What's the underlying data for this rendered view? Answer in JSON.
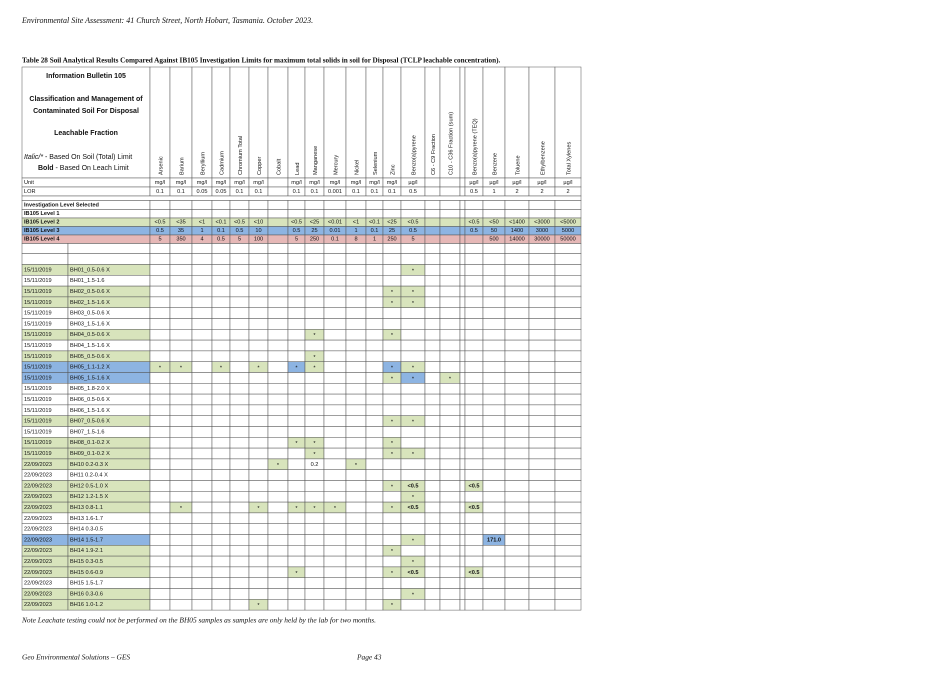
{
  "header": {
    "text": "Environmental Site Assessment: 41 Church Street, North Hobart, Tasmania. October 2023."
  },
  "caption": "Table 28  Soil Analytical Results Compared Against IB105 Investigation Limits for maximum total solids in soil for Disposal (TCLP leachable concentration).",
  "info": {
    "title": "Information Bulletin 105",
    "line1": "Classification and Management of",
    "line2": "Contaminated Soil For Disposal",
    "line3": "Leachable Fraction",
    "italic_label": "Italic/*",
    "italic_text": " - Based On Soil (Total) Limit",
    "bold_label": "Bold",
    "bold_text": " - Based On Leach Limit"
  },
  "palette": {
    "g": "#d8e4bc",
    "b": "#8db4e2",
    "p": "#e6b8b7"
  },
  "table": {
    "columns": [
      "Arsenic",
      "Barium",
      "Beryllium",
      "Cadmium",
      "Chromium Total",
      "Copper",
      "Cobalt",
      "Lead",
      "Manganese",
      "Mercury",
      "Nickel",
      "Selenium",
      "Zinc",
      "Benzo(a)pyrene",
      "C6 - C9 Fraction",
      "C10 - C36 Fraction (sum)",
      null,
      "Benzo(a)pyrene (TEQ)",
      "Benzene",
      "Toluene",
      "Ethylbenzene",
      "Total Xylenes"
    ],
    "unit": {
      "label": "Unit",
      "values": [
        "mg/l",
        "mg/l",
        "mg/l",
        "mg/l",
        "mg/l",
        "mg/l",
        null,
        "mg/l",
        "mg/l",
        "mg/l",
        "mg/l",
        "mg/l",
        "mg/l",
        "µg/l",
        null,
        null,
        null,
        "µg/l",
        "µg/l",
        "µg/l",
        "µg/l",
        "µg/l"
      ]
    },
    "lor": {
      "label": "LOR",
      "values": [
        "0.1",
        "0.1",
        "0.05",
        "0.05",
        "0.1",
        "0.1",
        null,
        "0.1",
        "0.1",
        "0.001",
        "0.1",
        "0.1",
        "0.1",
        "0.5",
        null,
        null,
        null,
        "0.5",
        "1",
        "2",
        "2",
        "2"
      ]
    },
    "levels": [
      {
        "label": "Investigation Level Selected"
      },
      {
        "label": "IB105 Level 1"
      },
      {
        "label": "IB105 Level 2",
        "fill": "g",
        "values": [
          "<0.5",
          "<35",
          "<1",
          "<0.1",
          "<0.5",
          "<10",
          null,
          "<0.5",
          "<25",
          "<0.01",
          "<1",
          "<0.1",
          "<25",
          "<0.5",
          null,
          null,
          null,
          "<0.5",
          "<50",
          "<1400",
          "<3000",
          "<5000"
        ]
      },
      {
        "label": "IB105 Level 3",
        "fill": "b",
        "values": [
          "0.5",
          "35",
          "1",
          "0.1",
          "0.5",
          "10",
          null,
          "0.5",
          "25",
          "0.01",
          "1",
          "0.1",
          "25",
          "0.5",
          null,
          null,
          null,
          "0.5",
          "50",
          "1400",
          "3000",
          "5000"
        ]
      },
      {
        "label": "IB105 Level 4",
        "fill": "p",
        "values": [
          "5",
          "350",
          "4",
          "0.5",
          "5",
          "100",
          null,
          "5",
          "250",
          "0.1",
          "8",
          "1",
          "250",
          "5",
          null,
          null,
          null,
          null,
          "500",
          "14000",
          "30000",
          "50000"
        ]
      }
    ],
    "samples": [
      {
        "date": "15/11/2019",
        "sample": "BH01_0.5-0.6 X",
        "fill": "g",
        "cells": {
          "13": [
            "*",
            "g"
          ]
        }
      },
      {
        "date": "15/11/2019",
        "sample": "BH01_1.5-1.6",
        "cells": {}
      },
      {
        "date": "15/11/2019",
        "sample": "BH02_0.5-0.6 X",
        "fill": "g",
        "cells": {
          "12": [
            "*",
            "g"
          ],
          "13": [
            "*",
            "g"
          ]
        }
      },
      {
        "date": "15/11/2019",
        "sample": "BH02_1.5-1.6 X",
        "fill": "g",
        "cells": {
          "12": [
            "*",
            "g"
          ],
          "13": [
            "*",
            "g"
          ]
        }
      },
      {
        "date": "15/11/2019",
        "sample": "BH03_0.5-0.6 X",
        "cells": {}
      },
      {
        "date": "15/11/2019",
        "sample": "BH03_1.5-1.6 X",
        "cells": {}
      },
      {
        "date": "15/11/2019",
        "sample": "BH04_0.5-0.6 X",
        "fill": "g",
        "cells": {
          "8": [
            "*",
            "g"
          ],
          "12": [
            "*",
            "g"
          ]
        }
      },
      {
        "date": "15/11/2019",
        "sample": "BH04_1.5-1.6 X",
        "cells": {}
      },
      {
        "date": "15/11/2019",
        "sample": "BH05_0.5-0.6 X",
        "fill": "g",
        "cells": {
          "8": [
            "*",
            "g"
          ]
        }
      },
      {
        "date": "15/11/2019",
        "sample": "BH05_1.1-1.2 X",
        "fill": "b",
        "cells": {
          "0": [
            "*",
            "g"
          ],
          "1": [
            "*",
            "g"
          ],
          "3": [
            "*",
            "g"
          ],
          "5": [
            "*",
            "g"
          ],
          "7": [
            "*",
            "b"
          ],
          "8": [
            "*",
            "g"
          ],
          "12": [
            "*",
            "b"
          ],
          "13": [
            "*",
            "g"
          ]
        }
      },
      {
        "date": "15/11/2019",
        "sample": "BH05_1.5-1.6 X",
        "fill": "b",
        "cells": {
          "12": [
            "*",
            "g"
          ],
          "13": [
            "*",
            "b"
          ],
          "15": [
            "*",
            "g"
          ]
        }
      },
      {
        "date": "15/11/2019",
        "sample": "BH05_1.8-2.0 X",
        "cells": {}
      },
      {
        "date": "15/11/2019",
        "sample": "BH06_0.5-0.6 X",
        "cells": {}
      },
      {
        "date": "15/11/2019",
        "sample": "BH06_1.5-1.6 X",
        "cells": {}
      },
      {
        "date": "15/11/2019",
        "sample": "BH07_0.5-0.6 X",
        "fill": "g",
        "cells": {
          "12": [
            "*",
            "g"
          ],
          "13": [
            "*",
            "g"
          ]
        }
      },
      {
        "date": "15/11/2019",
        "sample": "BH07_1.5-1.6",
        "cells": {}
      },
      {
        "date": "15/11/2019",
        "sample": "BH08_0.1-0.2 X",
        "fill": "g",
        "cells": {
          "7": [
            "*",
            "g"
          ],
          "8": [
            "*",
            "g"
          ],
          "12": [
            "*",
            "g"
          ]
        }
      },
      {
        "date": "15/11/2019",
        "sample": "BH09_0.1-0.2 X",
        "fill": "g",
        "cells": {
          "8": [
            "*",
            "g"
          ],
          "12": [
            "*",
            "g"
          ],
          "13": [
            "*",
            "g"
          ]
        }
      },
      {
        "date": "22/09/2023",
        "sample": "BH10 0.2-0.3 X",
        "fill": "g",
        "cells": {
          "6": [
            "*",
            "g"
          ],
          "8": [
            "0.2"
          ],
          "10": [
            "*",
            "g"
          ]
        }
      },
      {
        "date": "22/09/2023",
        "sample": "BH11 0.2-0.4 X",
        "cells": {}
      },
      {
        "date": "22/09/2023",
        "sample": "BH12 0.5-1.0 X",
        "fill": "g",
        "cells": {
          "12": [
            "*",
            "g"
          ],
          "13": [
            "<0.5",
            "g",
            "bold"
          ],
          "17": [
            "<0.5",
            "g",
            "bold"
          ]
        }
      },
      {
        "date": "22/09/2023",
        "sample": "BH12 1.2-1.5 X",
        "fill": "g",
        "cells": {
          "13": [
            "*",
            "g"
          ]
        }
      },
      {
        "date": "22/09/2023",
        "sample": "BH13 0.8-1.1",
        "fill": "g",
        "cells": {
          "1": [
            "*",
            "g"
          ],
          "5": [
            "*",
            "g"
          ],
          "7": [
            "*",
            "g"
          ],
          "8": [
            "*",
            "g"
          ],
          "9": [
            "*",
            "g"
          ],
          "12": [
            "*",
            "g"
          ],
          "13": [
            "<0.5",
            "g",
            "bold"
          ],
          "17": [
            "<0.5",
            "g",
            "bold"
          ]
        }
      },
      {
        "date": "22/09/2023",
        "sample": "BH13 1.6-1.7",
        "cells": {}
      },
      {
        "date": "22/09/2023",
        "sample": "BH14 0.3-0.5",
        "cells": {}
      },
      {
        "date": "22/09/2023",
        "sample": "BH14 1.5-1.7",
        "fill": "b",
        "cells": {
          "13": [
            "*",
            "g"
          ],
          "18": [
            "171.0",
            "b",
            "bold"
          ]
        }
      },
      {
        "date": "22/09/2023",
        "sample": "BH14 1.9-2.1",
        "fill": "g",
        "cells": {
          "12": [
            "*",
            "g"
          ]
        }
      },
      {
        "date": "22/09/2023",
        "sample": "BH15 0.3-0.5",
        "fill": "g",
        "cells": {
          "13": [
            "*",
            "g"
          ]
        }
      },
      {
        "date": "22/09/2023",
        "sample": "BH15 0.6-0.9",
        "fill": "g",
        "cells": {
          "7": [
            "*",
            "g"
          ],
          "12": [
            "*",
            "g"
          ],
          "13": [
            "<0.5",
            "g",
            "bold"
          ],
          "17": [
            "<0.5",
            "g",
            "bold"
          ]
        }
      },
      {
        "date": "22/09/2023",
        "sample": "BH15 1.5-1.7",
        "cells": {}
      },
      {
        "date": "22/09/2023",
        "sample": "BH16 0.3-0.6",
        "fill": "g",
        "cells": {
          "13": [
            "*",
            "g"
          ]
        }
      },
      {
        "date": "22/09/2023",
        "sample": "BH16 1.0-1.2",
        "fill": "g",
        "cells": {
          "5": [
            "*",
            "g"
          ],
          "12": [
            "*",
            "g"
          ]
        }
      }
    ]
  },
  "note": "Note Leachate testing could not be performed on the BH05 samples as samples are only held by the lab for two months.",
  "footer": {
    "left": "Geo Environmental Solutions – GES",
    "page": "Page 43"
  }
}
